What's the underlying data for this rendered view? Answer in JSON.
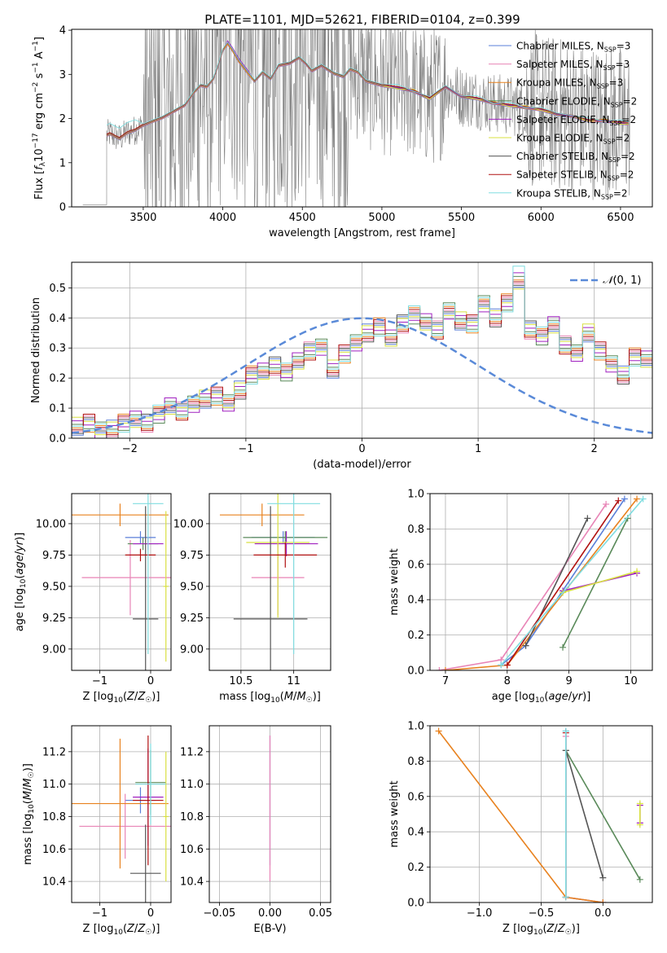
{
  "title": "PLATE=1101, MJD=52621, FIBERID=0104, z=0.399",
  "colors": [
    "#5a7fd8",
    "#e884b6",
    "#e8821f",
    "#5a8a5a",
    "#a020c0",
    "#d8e040",
    "#555555",
    "#b01010",
    "#80dde0"
  ],
  "chart_data": [
    {
      "id": "spectrum",
      "type": "line",
      "xlabel": "wavelength [Angstrom, rest frame]",
      "ylabel": "Flux [f_λ 10^-17 erg cm^-2 s^-1 A^-1]",
      "xlim": [
        3050,
        6700
      ],
      "ylim": [
        0,
        4.02
      ],
      "xticks": [
        3500,
        4000,
        4500,
        5000,
        5500,
        6000,
        6500
      ],
      "yticks": [
        0,
        1,
        2,
        3,
        4
      ],
      "legend": "top-right",
      "series": [
        {
          "name": "Chabrier MILES, N_SSP=3"
        },
        {
          "name": "Salpeter MILES, N_SSP=3"
        },
        {
          "name": "Kroupa MILES, N_SSP=3"
        },
        {
          "name": "Chabrier ELODIE, N_SSP=2"
        },
        {
          "name": "Salpeter ELODIE, N_SSP=2"
        },
        {
          "name": "Kroupa ELODIE, N_SSP=2"
        },
        {
          "name": "Chabrier STELIB, N_SSP=2"
        },
        {
          "name": "Salpeter STELIB, N_SSP=2"
        },
        {
          "name": "Kroupa STELIB, N_SSP=2"
        }
      ],
      "model_x": [
        3270,
        3290,
        3320,
        3350,
        3400,
        3450,
        3500,
        3560,
        3620,
        3700,
        3760,
        3820,
        3860,
        3900,
        3940,
        3970,
        4000,
        4030,
        4060,
        4100,
        4160,
        4200,
        4250,
        4300,
        4350,
        4420,
        4480,
        4520,
        4560,
        4620,
        4700,
        4760,
        4800,
        4850,
        4900,
        5000,
        5100,
        5200,
        5300,
        5400,
        5500,
        5600,
        5700,
        5800,
        5900,
        6000,
        6100,
        6200,
        6300,
        6400,
        6500,
        6550
      ],
      "model_y": [
        1.62,
        1.66,
        1.6,
        1.55,
        1.68,
        1.74,
        1.85,
        1.94,
        2.02,
        2.18,
        2.3,
        2.6,
        2.75,
        2.72,
        2.9,
        3.2,
        3.55,
        3.7,
        3.55,
        3.3,
        3.02,
        2.85,
        3.05,
        2.9,
        3.2,
        3.25,
        3.38,
        3.25,
        3.08,
        3.2,
        3.02,
        2.95,
        3.12,
        3.05,
        2.85,
        2.75,
        2.7,
        2.62,
        2.45,
        2.72,
        2.5,
        2.45,
        2.35,
        2.3,
        2.25,
        2.2,
        2.1,
        2.05,
        1.95,
        1.95,
        1.9,
        1.88
      ],
      "observed": "noisy spectrum 3270-6560 Angstrom"
    },
    {
      "id": "residuals",
      "type": "bar",
      "xlabel": "(data-model)/error",
      "ylabel": "Normed distribution",
      "xlim": [
        -2.5,
        2.5
      ],
      "ylim": [
        0,
        0.585
      ],
      "xticks": [
        -2,
        -1,
        0,
        1,
        2
      ],
      "yticks": [
        0,
        0.1,
        0.2,
        0.3,
        0.4,
        0.5
      ],
      "legend": "top-right",
      "gaussian_label": "N(0,1)",
      "bin_edges_start": -2.5,
      "bin_width": 0.1,
      "hist_values": [
        0.04,
        0.05,
        0.03,
        0.03,
        0.05,
        0.06,
        0.05,
        0.08,
        0.11,
        0.09,
        0.11,
        0.13,
        0.14,
        0.12,
        0.16,
        0.21,
        0.22,
        0.24,
        0.22,
        0.26,
        0.29,
        0.3,
        0.23,
        0.28,
        0.32,
        0.35,
        0.37,
        0.33,
        0.38,
        0.41,
        0.39,
        0.36,
        0.42,
        0.39,
        0.38,
        0.45,
        0.4,
        0.45,
        0.52,
        0.36,
        0.34,
        0.38,
        0.31,
        0.28,
        0.35,
        0.29,
        0.25,
        0.21,
        0.27,
        0.26,
        0.24,
        0.21,
        0.19,
        0.2,
        0.17,
        0.19,
        0.13,
        0.13,
        0.14,
        0.09,
        0.11,
        0.08,
        0.08,
        0.07,
        0.1,
        0.05,
        0.06,
        0.05,
        0.07,
        0.05,
        0.04
      ],
      "hist_start_index": 0
    },
    {
      "id": "age-vs-Z",
      "type": "scatter",
      "xlabel": "Z [log10(Z/Z☉)]",
      "ylabel": "age [log10(age/yr)]",
      "xlim": [
        -1.55,
        0.4
      ],
      "ylim": [
        8.83,
        10.24
      ],
      "xticks": [
        -1,
        0
      ],
      "yticks": [
        9.0,
        9.25,
        9.5,
        9.75,
        10.0
      ],
      "points": [
        {
          "x": -0.2,
          "xerr": 0.3,
          "y": 9.89,
          "yerr": 0.05
        },
        {
          "x": -0.4,
          "xerr": 0.95,
          "y": 9.57,
          "yerr": 0.3
        },
        {
          "x": -0.6,
          "xerr": 0.95,
          "y": 10.07,
          "yerr": 0.09
        },
        {
          "x": -0.15,
          "xerr": 0.3,
          "y": 9.84,
          "yerr": 0.05
        },
        {
          "x": -0.05,
          "xerr": 0.3,
          "y": 9.84,
          "yerr": 0.05
        },
        {
          "x": 0.3,
          "xerr": 0.05,
          "y": 9.5,
          "yerr": 0.6
        },
        {
          "x": -0.1,
          "xerr": 0.25,
          "y": 9.24,
          "yerr": 0.9
        },
        {
          "x": -0.2,
          "xerr": 0.3,
          "y": 9.75,
          "yerr": 0.05
        },
        {
          "x": -0.05,
          "xerr": 0.3,
          "y": 10.16,
          "yerr": 1.2
        }
      ]
    },
    {
      "id": "age-vs-mass",
      "type": "scatter",
      "xlabel": "mass [log10(M/M☉)]",
      "ylabel": "",
      "xlim": [
        10.2,
        11.35
      ],
      "ylim": [
        8.83,
        10.24
      ],
      "xticks": [
        10.5,
        11.0
      ],
      "yticks": [
        9.0,
        9.25,
        9.5,
        9.75,
        10.0
      ],
      "points": [
        {
          "x": 10.9,
          "xerr": 0.3,
          "y": 9.89,
          "yerr": 0.05
        },
        {
          "x": 10.85,
          "xerr": 0.25,
          "y": 9.57,
          "yerr": 0.3
        },
        {
          "x": 10.7,
          "xerr": 0.4,
          "y": 10.07,
          "yerr": 0.09
        },
        {
          "x": 10.92,
          "xerr": 0.4,
          "y": 9.89,
          "yerr": 0.05
        },
        {
          "x": 10.93,
          "xerr": 0.3,
          "y": 9.84,
          "yerr": 0.1
        },
        {
          "x": 10.85,
          "xerr": 0.3,
          "y": 9.85,
          "yerr": 0.6
        },
        {
          "x": 10.78,
          "xerr": 0.35,
          "y": 9.24,
          "yerr": 0.9
        },
        {
          "x": 10.92,
          "xerr": 0.3,
          "y": 9.75,
          "yerr": 0.1
        },
        {
          "x": 11.0,
          "xerr": 0.25,
          "y": 10.16,
          "yerr": 1.2
        }
      ]
    },
    {
      "id": "weight-vs-age",
      "type": "line",
      "xlabel": "age [log10(age/yr)]",
      "ylabel": "mass weight",
      "xlim": [
        6.75,
        10.35
      ],
      "ylim": [
        0,
        1.0
      ],
      "xticks": [
        7,
        8,
        9,
        10
      ],
      "yticks": [
        0.0,
        0.2,
        0.4,
        0.6,
        0.8,
        1.0
      ],
      "series": [
        {
          "x": [
            7.9,
            8.3,
            9.9
          ],
          "y": [
            0.03,
            0.14,
            0.97
          ]
        },
        {
          "x": [
            6.9,
            7.9,
            9.6
          ],
          "y": [
            0.0,
            0.06,
            0.94
          ]
        },
        {
          "x": [
            7.0,
            8.0,
            10.1
          ],
          "y": [
            0.0,
            0.03,
            0.97
          ]
        },
        {
          "x": [
            8.9,
            9.95
          ],
          "y": [
            0.13,
            0.86
          ]
        },
        {
          "x": [
            8.9,
            10.1
          ],
          "y": [
            0.45,
            0.55
          ]
        },
        {
          "x": [
            8.9,
            10.1
          ],
          "y": [
            0.44,
            0.56
          ]
        },
        {
          "x": [
            8.3,
            9.3
          ],
          "y": [
            0.14,
            0.86
          ]
        },
        {
          "x": [
            8.0,
            9.8
          ],
          "y": [
            0.03,
            0.96
          ]
        },
        {
          "x": [
            7.9,
            10.2
          ],
          "y": [
            0.03,
            0.97
          ]
        }
      ]
    },
    {
      "id": "mass-vs-Z",
      "type": "scatter",
      "xlabel": "Z [log10(Z/Z☉)]",
      "ylabel": "mass [log10(M/M☉)]",
      "xlim": [
        -1.55,
        0.4
      ],
      "ylim": [
        10.27,
        11.36
      ],
      "xticks": [
        -1,
        0
      ],
      "yticks": [
        10.4,
        10.6,
        10.8,
        11.0,
        11.2
      ],
      "points": [
        {
          "x": -0.2,
          "xerr": 0.3,
          "y": 10.9,
          "yerr": 0.08
        },
        {
          "x": -0.5,
          "xerr": 0.9,
          "y": 10.74,
          "yerr": 0.2
        },
        {
          "x": -0.6,
          "xerr": 0.95,
          "y": 10.88,
          "yerr": 0.4
        },
        {
          "x": 0.0,
          "xerr": 0.3,
          "y": 11.01,
          "yerr": 0.2
        },
        {
          "x": -0.05,
          "xerr": 0.3,
          "y": 10.92,
          "yerr": 0.3
        },
        {
          "x": 0.3,
          "xerr": 0.05,
          "y": 10.8,
          "yerr": 0.4
        },
        {
          "x": -0.1,
          "xerr": 0.3,
          "y": 10.45,
          "yerr": 0.3
        },
        {
          "x": -0.05,
          "xerr": 0.3,
          "y": 10.9,
          "yerr": 0.4
        },
        {
          "x": 0.0,
          "xerr": 0.3,
          "y": 11.0,
          "yerr": 0.25
        }
      ]
    },
    {
      "id": "mass-vs-ebv",
      "type": "scatter",
      "xlabel": "E(B-V)",
      "ylabel": "",
      "xlim": [
        -0.06,
        0.06
      ],
      "ylim": [
        10.27,
        11.36
      ],
      "xticks": [
        -0.05,
        0.0,
        0.05
      ],
      "xticklabels": [
        "−0.05",
        "0.00",
        "0.05"
      ],
      "yticks": [
        10.4,
        10.6,
        10.8,
        11.0,
        11.2
      ],
      "points": [
        {
          "x": 0.0,
          "y": 10.9,
          "yerr": 0.4
        },
        {
          "x": 0.0,
          "y": 10.85,
          "yerr": 0.45
        }
      ]
    },
    {
      "id": "weight-vs-Z",
      "type": "line",
      "xlabel": "Z [log10(Z/Z☉)]",
      "ylabel": "mass weight",
      "xlim": [
        -1.4,
        0.4
      ],
      "ylim": [
        0,
        1.0
      ],
      "xticks": [
        -1.0,
        -0.5,
        0.0
      ],
      "xticklabels": [
        "−1.0",
        "−0.5",
        "0.0"
      ],
      "yticks": [
        0.0,
        0.2,
        0.4,
        0.6,
        0.8,
        1.0
      ],
      "series": [
        {
          "x": [
            -0.3,
            -0.3,
            0.0
          ],
          "y": [
            0.97,
            0.03,
            0.0
          ]
        },
        {
          "x": [
            -0.3,
            -0.3,
            0.0
          ],
          "y": [
            0.94,
            0.03,
            0.0
          ]
        },
        {
          "x": [
            -1.33,
            -0.3,
            0.0
          ],
          "y": [
            0.97,
            0.03,
            0.0
          ]
        },
        {
          "x": [
            -0.3,
            0.3
          ],
          "y": [
            0.86,
            0.13
          ]
        },
        {
          "x": [
            0.3,
            0.3
          ],
          "y": [
            0.45,
            0.55
          ]
        },
        {
          "x": [
            0.3,
            0.3
          ],
          "y": [
            0.44,
            0.56
          ]
        },
        {
          "x": [
            -0.3,
            0.0
          ],
          "y": [
            0.86,
            0.14
          ]
        },
        {
          "x": [
            -0.3,
            -0.3
          ],
          "y": [
            0.96,
            0.03
          ]
        },
        {
          "x": [
            -0.3,
            -0.3
          ],
          "y": [
            0.97,
            0.03
          ]
        }
      ]
    }
  ]
}
